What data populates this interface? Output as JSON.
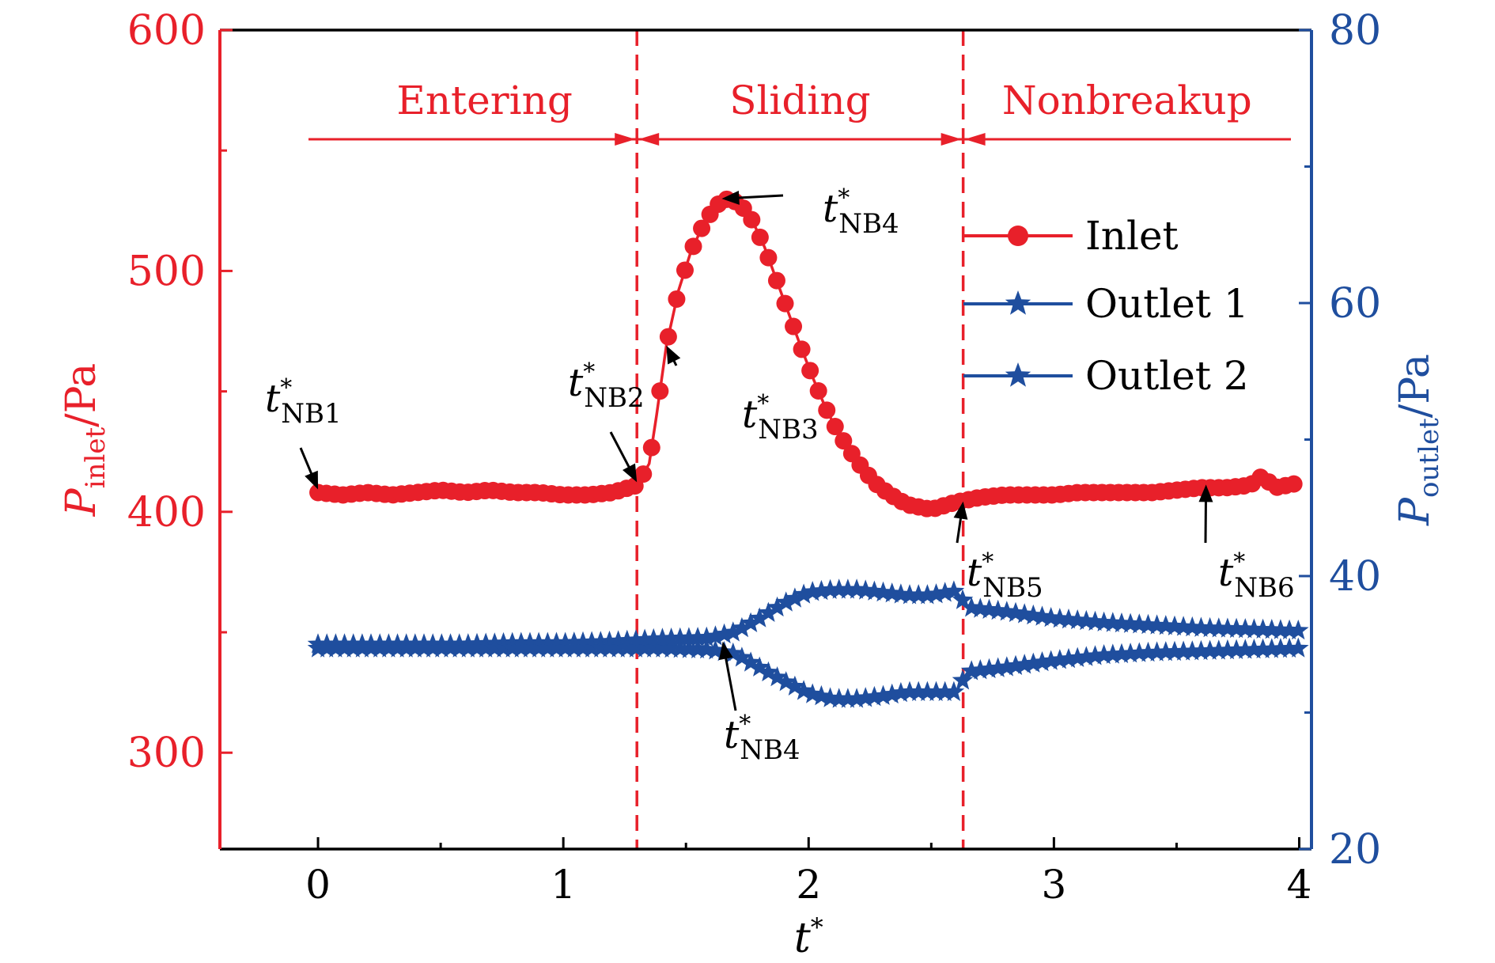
{
  "chart_data": {
    "type": "line",
    "x_axis": {
      "label": "t*",
      "ticks": [
        "0",
        "1",
        "2",
        "3",
        "4"
      ],
      "range": [
        -0.4,
        4.05
      ]
    },
    "y_left": {
      "label_main": "P",
      "label_sub": "inlet",
      "label_unit": "/Pa",
      "ticks": [
        "300",
        "400",
        "500",
        "600"
      ],
      "range": [
        260,
        600
      ],
      "color": "#e8202a"
    },
    "y_right": {
      "label_main": "P",
      "label_sub": "outlet",
      "label_unit": "/Pa",
      "ticks": [
        "20",
        "40",
        "60",
        "80"
      ],
      "range": [
        20,
        80
      ],
      "color": "#1f4e9e"
    },
    "phases": [
      {
        "name": "Entering",
        "from": 0,
        "to": 1.3
      },
      {
        "name": "Sliding",
        "from": 1.3,
        "to": 2.63
      },
      {
        "name": "Nonbreakup",
        "from": 2.63,
        "to": 4.0
      }
    ],
    "phase_boundaries": [
      1.3,
      2.63
    ],
    "series": [
      {
        "name": "Inlet",
        "axis": "left",
        "marker": "circle",
        "color": "#e8202a",
        "x": [
          0.0,
          0.1,
          0.2,
          0.3,
          0.4,
          0.5,
          0.6,
          0.7,
          0.8,
          0.9,
          1.0,
          1.1,
          1.2,
          1.3,
          1.35,
          1.38,
          1.42,
          1.47,
          1.52,
          1.57,
          1.62,
          1.67,
          1.72,
          1.77,
          1.82,
          1.87,
          1.92,
          1.97,
          2.02,
          2.07,
          2.12,
          2.17,
          2.22,
          2.27,
          2.32,
          2.4,
          2.5,
          2.6,
          2.7,
          2.8,
          2.9,
          3.0,
          3.1,
          3.2,
          3.3,
          3.4,
          3.5,
          3.6,
          3.7,
          3.8,
          3.85,
          3.9,
          4.0
        ],
        "y": [
          408,
          407,
          408,
          407,
          408,
          409,
          408,
          409,
          408,
          408,
          407,
          407,
          408,
          411,
          420,
          440,
          469,
          492,
          508,
          519,
          527,
          530,
          528,
          521,
          510,
          496,
          482,
          468,
          455,
          443,
          433,
          425,
          418,
          412,
          408,
          403,
          401,
          404,
          406,
          407,
          407,
          407,
          408,
          408,
          408,
          408,
          409,
          410,
          410,
          411,
          415,
          410,
          412
        ]
      },
      {
        "name": "Outlet 1",
        "axis": "right",
        "marker": "star",
        "color": "#1f4e9e",
        "x": [
          0.0,
          0.2,
          0.4,
          0.6,
          0.8,
          1.0,
          1.2,
          1.4,
          1.6,
          1.7,
          1.8,
          1.9,
          2.0,
          2.1,
          2.2,
          2.3,
          2.4,
          2.5,
          2.6,
          2.65,
          2.8,
          3.0,
          3.2,
          3.4,
          3.6,
          3.8,
          4.0
        ],
        "y": [
          35.0,
          35.0,
          35.0,
          35.0,
          35.1,
          35.1,
          35.2,
          35.4,
          35.5,
          35.9,
          36.9,
          38.0,
          38.8,
          39.0,
          39.0,
          38.8,
          38.6,
          38.6,
          38.9,
          37.7,
          37.4,
          36.9,
          36.6,
          36.4,
          36.2,
          36.1,
          36.0
        ]
      },
      {
        "name": "Outlet 2",
        "axis": "right",
        "marker": "star",
        "color": "#1f4e9e",
        "x": [
          0.0,
          0.2,
          0.4,
          0.6,
          0.8,
          1.0,
          1.2,
          1.4,
          1.6,
          1.7,
          1.8,
          1.9,
          2.0,
          2.1,
          2.2,
          2.3,
          2.4,
          2.5,
          2.6,
          2.65,
          2.8,
          3.0,
          3.2,
          3.4,
          3.6,
          3.8,
          4.0
        ],
        "y": [
          34.7,
          34.7,
          34.7,
          34.7,
          34.7,
          34.7,
          34.7,
          34.7,
          34.6,
          34.3,
          33.3,
          32.3,
          31.4,
          31.0,
          31.0,
          31.2,
          31.5,
          31.5,
          31.5,
          33.0,
          33.3,
          33.8,
          34.2,
          34.4,
          34.5,
          34.6,
          34.7
        ]
      }
    ],
    "annotations": [
      {
        "label": "t*",
        "sub": "NB1",
        "target_x": 0.0,
        "target_y": 408,
        "axis": "left"
      },
      {
        "label": "t*",
        "sub": "NB2",
        "target_x": 1.3,
        "target_y": 411,
        "axis": "left"
      },
      {
        "label": "t*",
        "sub": "NB3",
        "target_x": 1.42,
        "target_y": 469,
        "axis": "left"
      },
      {
        "label": "t*",
        "sub": "NB4",
        "target_x": 1.62,
        "target_y": 530,
        "axis": "left"
      },
      {
        "label": "t*",
        "sub": "NB4",
        "target_x": 1.65,
        "target_y": 35.2,
        "axis": "right"
      },
      {
        "label": "t*",
        "sub": "NB5",
        "target_x": 2.63,
        "target_y": 403,
        "axis": "left"
      },
      {
        "label": "t*",
        "sub": "NB6",
        "target_x": 3.62,
        "target_y": 410,
        "axis": "left"
      }
    ],
    "legend": {
      "placement": "top-right",
      "entries": [
        "Inlet",
        "Outlet 1",
        "Outlet 2"
      ]
    },
    "grid": false
  }
}
